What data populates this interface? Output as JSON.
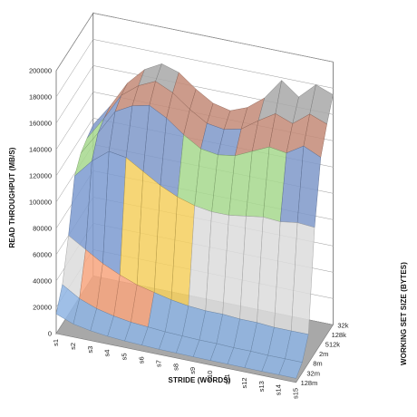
{
  "chart_data": {
    "type": "surface",
    "title": "",
    "xlabel": "STRIDE (WORDS)",
    "ylabel": "WORKING SET SIZE (BYTES)",
    "zlabel": "READ THROUGHPUT (MB/S)",
    "zlim": [
      0,
      200000
    ],
    "z_ticks": [
      "0",
      "20000",
      "40000",
      "60000",
      "80000",
      "100000",
      "120000",
      "140000",
      "160000",
      "180000",
      "200000"
    ],
    "stride_ticks": [
      "s1",
      "s2",
      "s3",
      "s4",
      "s5",
      "s6",
      "s7",
      "s8",
      "s9",
      "s10",
      "s11",
      "s12",
      "s13",
      "s14",
      "s15"
    ],
    "size_ticks": [
      "32k",
      "128k",
      "512k",
      "2m",
      "8m",
      "32m",
      "128m"
    ],
    "band_colors": [
      "#8fb4e3",
      "#f7a57f",
      "#dcdcdc",
      "#f5cf5f",
      "#7d9bd0",
      "#a7d98e",
      "#7f98c9",
      "#c48a78",
      "#a9a9a9",
      "#f4b1a0"
    ],
    "values": [
      [
        115000,
        132000,
        152000,
        165000,
        172000,
        168000,
        158000,
        150000,
        147000,
        152000,
        162000,
        178000,
        168000,
        180000,
        175000
      ],
      [
        112000,
        130000,
        150000,
        160000,
        166000,
        160000,
        150000,
        142000,
        140000,
        143000,
        152000,
        160000,
        155000,
        165000,
        160000
      ],
      [
        108000,
        126000,
        145000,
        152000,
        155000,
        148000,
        138000,
        130000,
        128000,
        130000,
        136000,
        142000,
        140000,
        148000,
        142000
      ],
      [
        98000,
        112000,
        122000,
        120000,
        112000,
        104000,
        98000,
        94000,
        92000,
        92000,
        94000,
        96000,
        95000,
        97000,
        96000
      ],
      [
        60000,
        52000,
        44000,
        38000,
        33000,
        30000,
        27000,
        25000,
        24000,
        24000,
        23000,
        23000,
        22000,
        22000,
        22000
      ],
      [
        30000,
        22000,
        17000,
        14000,
        12000,
        11000,
        10000,
        9500,
        9000,
        9000,
        8500,
        8500,
        8000,
        8000,
        8000
      ],
      [
        15000,
        10000,
        7500,
        6000,
        5000,
        4500,
        4000,
        3800,
        3600,
        3500,
        3400,
        3300,
        3200,
        3200,
        3100
      ]
    ]
  }
}
